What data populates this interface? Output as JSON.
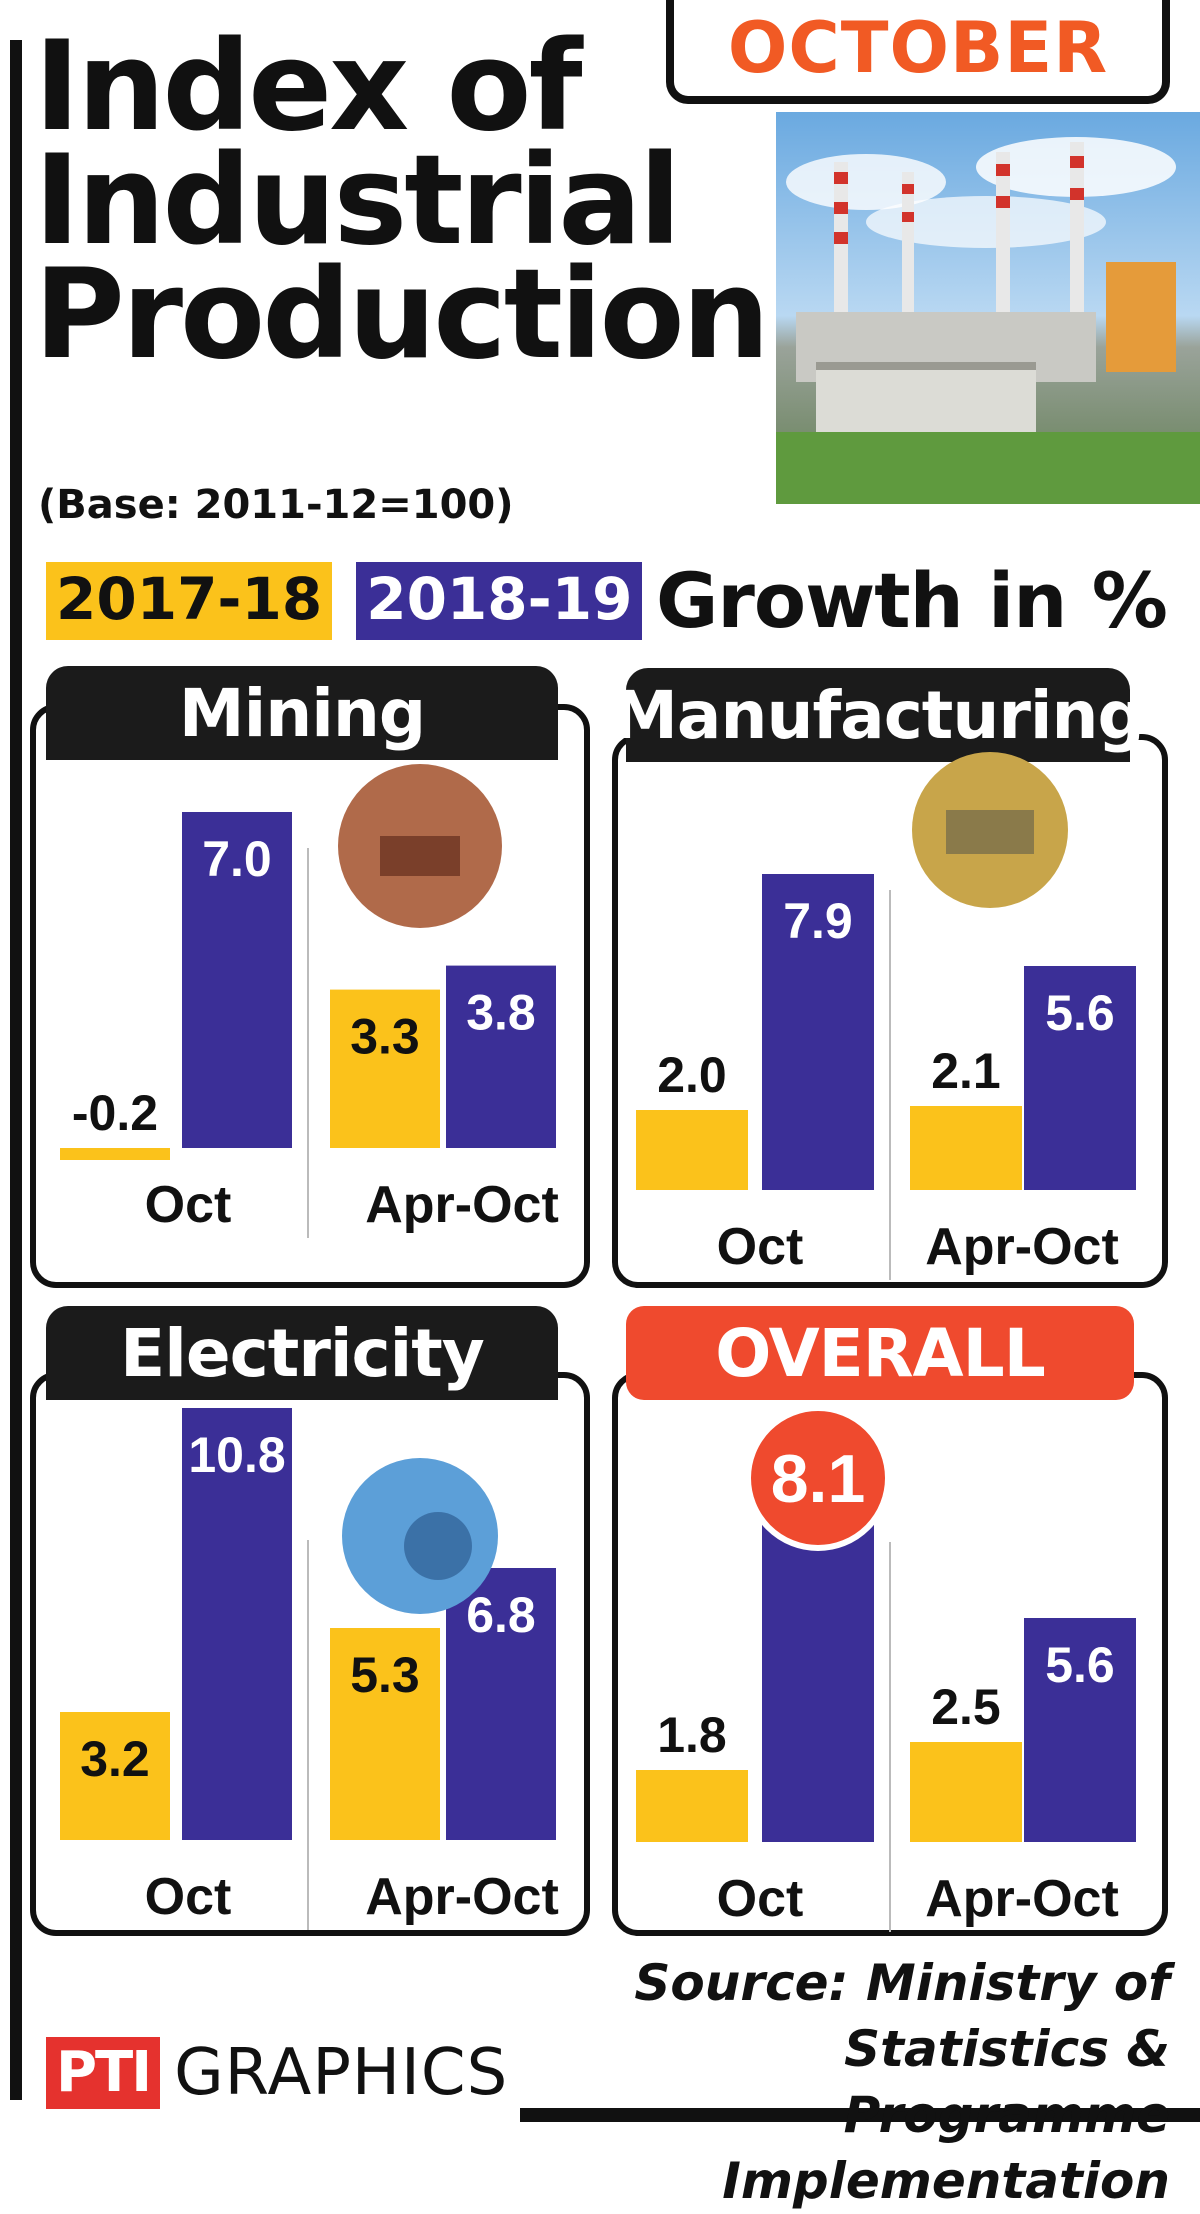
{
  "header": {
    "month": "OCTOBER",
    "title": "Index of\nIndustrial\nProduction",
    "base_note": "(Base: 2011-12=100)"
  },
  "legend": {
    "y1": "2017-18",
    "y2": "2018-19",
    "growth": "Growth in %"
  },
  "colors": {
    "y1": "#fbc21b",
    "y2": "#3b2f97",
    "accent": "#ef4a2e",
    "month": "#f15a24"
  },
  "icons": {
    "header": "industrial-plant-photo-icon",
    "mining": "mining-photo-icon",
    "manufacturing": "manufacturing-photo-icon",
    "electricity": "electricity-bulb-icon"
  },
  "chart_data": [
    {
      "type": "bar",
      "title": "Mining",
      "categories": [
        "Oct",
        "Apr-Oct"
      ],
      "series": [
        {
          "name": "2017-18",
          "values": [
            -0.2,
            3.3
          ]
        },
        {
          "name": "2018-19",
          "values": [
            7.0,
            3.8
          ]
        }
      ],
      "value_labels": [
        [
          "-0.2",
          "3.3"
        ],
        [
          "7.0",
          "3.8"
        ]
      ]
    },
    {
      "type": "bar",
      "title": "Manufacturing",
      "categories": [
        "Oct",
        "Apr-Oct"
      ],
      "series": [
        {
          "name": "2017-18",
          "values": [
            2.0,
            2.1
          ]
        },
        {
          "name": "2018-19",
          "values": [
            7.9,
            5.6
          ]
        }
      ],
      "value_labels": [
        [
          "2.0",
          "2.1"
        ],
        [
          "7.9",
          "5.6"
        ]
      ]
    },
    {
      "type": "bar",
      "title": "Electricity",
      "categories": [
        "Oct",
        "Apr-Oct"
      ],
      "series": [
        {
          "name": "2017-18",
          "values": [
            3.2,
            5.3
          ]
        },
        {
          "name": "2018-19",
          "values": [
            10.8,
            6.8
          ]
        }
      ],
      "value_labels": [
        [
          "3.2",
          "5.3"
        ],
        [
          "10.8",
          "6.8"
        ]
      ]
    },
    {
      "type": "bar",
      "title": "OVERALL",
      "categories": [
        "Oct",
        "Apr-Oct"
      ],
      "series": [
        {
          "name": "2017-18",
          "values": [
            1.8,
            2.5
          ]
        },
        {
          "name": "2018-19",
          "values": [
            8.1,
            5.6
          ]
        }
      ],
      "value_labels": [
        [
          "1.8",
          "2.5"
        ],
        [
          "8.1",
          "5.6"
        ]
      ],
      "highlight": "8.1"
    }
  ],
  "footer": {
    "source": "Source: Ministry of Statistics &\nProgramme Implementation",
    "logo": "PTI",
    "credit": "GRAPHICS"
  }
}
